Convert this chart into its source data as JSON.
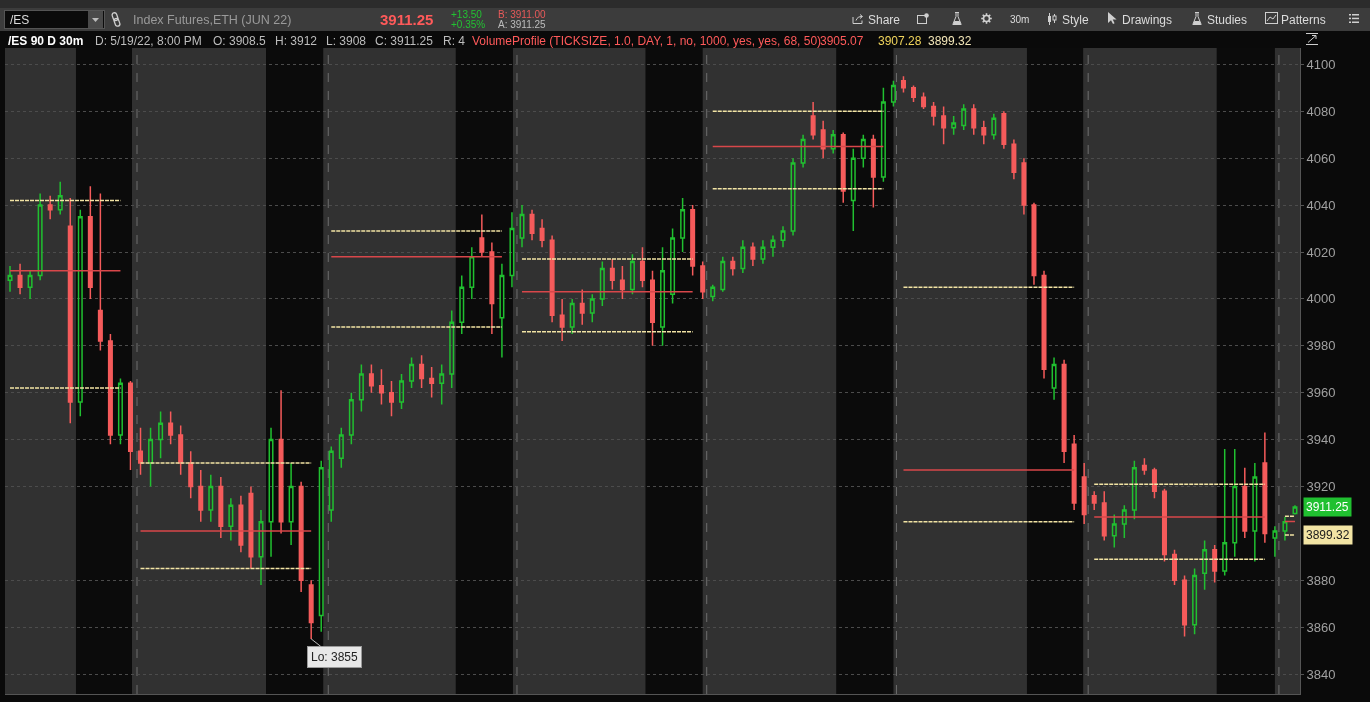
{
  "chart_data": {
    "type": "candlestick",
    "title": "/ES 90 D 30m",
    "subtitle": "Index Futures,ETH (JUN 22)",
    "categories": [
      null,
      null,
      null,
      null,
      null,
      null,
      null,
      null,
      null,
      null,
      null,
      null,
      null,
      null,
      null,
      null,
      null,
      null,
      null,
      null,
      null,
      null,
      null,
      null,
      null,
      null,
      null,
      null,
      null,
      null,
      null,
      null,
      null,
      null,
      null,
      null,
      null,
      null,
      null,
      null,
      null,
      null,
      null,
      null,
      null,
      null,
      null,
      null,
      null,
      null,
      null,
      null,
      null,
      null,
      null,
      null,
      null,
      null,
      null,
      null,
      null,
      null,
      null,
      null,
      null,
      null,
      null,
      null,
      null,
      null,
      null,
      null,
      null,
      null,
      null,
      null,
      null,
      null,
      null,
      null,
      null,
      null,
      null,
      null,
      null,
      null,
      null,
      null,
      null,
      null,
      null,
      null,
      null,
      null,
      null,
      null,
      null,
      null,
      null,
      null,
      null,
      null,
      null,
      null,
      null,
      null,
      null,
      null,
      null,
      null,
      null,
      null,
      null,
      null,
      null,
      null,
      null,
      null,
      null,
      null,
      null,
      null,
      null,
      null,
      null,
      null,
      null,
      null,
      null
    ],
    "ohlc": [
      [
        4008,
        4014,
        4003,
        4010
      ],
      [
        4010,
        4015,
        4002,
        4005
      ],
      [
        4005,
        4012,
        4000,
        4010
      ],
      [
        4010,
        4045,
        4008,
        4040
      ],
      [
        4040,
        4044,
        4034,
        4038
      ],
      [
        4038,
        4050,
        4036,
        4044
      ],
      [
        4031,
        4043,
        3947,
        3956
      ],
      [
        3956,
        4038,
        3950,
        4035
      ],
      [
        4035,
        4048,
        4000,
        4005
      ],
      [
        3995,
        4045,
        3978,
        3982
      ],
      [
        3982,
        3985,
        3938,
        3942
      ],
      [
        3942,
        3966,
        3938,
        3964
      ],
      [
        3964,
        3965,
        3927,
        3935
      ],
      [
        3935,
        3945,
        3925,
        3930
      ],
      [
        3930,
        3945,
        3920,
        3940
      ],
      [
        3940,
        3952,
        3932,
        3947
      ],
      [
        3947,
        3952,
        3938,
        3942
      ],
      [
        3942,
        3946,
        3925,
        3930
      ],
      [
        3930,
        3935,
        3915,
        3920
      ],
      [
        3920,
        3927,
        3905,
        3910
      ],
      [
        3910,
        3925,
        3905,
        3920
      ],
      [
        3920,
        3924,
        3898,
        3903
      ],
      [
        3903,
        3915,
        3897,
        3912
      ],
      [
        3912,
        3916,
        3892,
        3895
      ],
      [
        3917,
        3920,
        3885,
        3890
      ],
      [
        3890,
        3910,
        3878,
        3905
      ],
      [
        3905,
        3945,
        3890,
        3940
      ],
      [
        3940,
        3961,
        3900,
        3905
      ],
      [
        3905,
        3930,
        3895,
        3920
      ],
      [
        3920,
        3922,
        3875,
        3880
      ],
      [
        3878,
        3880,
        3855,
        3862
      ],
      [
        3865,
        3931,
        3858,
        3928
      ],
      [
        3910,
        3937,
        3905,
        3935
      ],
      [
        3932,
        3945,
        3928,
        3942
      ],
      [
        3942,
        3960,
        3938,
        3957
      ],
      [
        3957,
        3972,
        3952,
        3968
      ],
      [
        3968,
        3972,
        3960,
        3963
      ],
      [
        3963,
        3970,
        3955,
        3960
      ],
      [
        3960,
        3965,
        3950,
        3956
      ],
      [
        3956,
        3968,
        3953,
        3965
      ],
      [
        3965,
        3975,
        3962,
        3972
      ],
      [
        3972,
        3976,
        3962,
        3966
      ],
      [
        3966,
        3971,
        3958,
        3964
      ],
      [
        3964,
        3972,
        3955,
        3968
      ],
      [
        3968,
        3995,
        3962,
        3990
      ],
      [
        3990,
        4010,
        3985,
        4005
      ],
      [
        4005,
        4022,
        4000,
        4018
      ],
      [
        4026,
        4036,
        4018,
        4020
      ],
      [
        4020,
        4024,
        3985,
        3998
      ],
      [
        3992,
        4015,
        3975,
        4010
      ],
      [
        4010,
        4037,
        4005,
        4030
      ],
      [
        4026,
        4040,
        4022,
        4036
      ],
      [
        4036,
        4038,
        4025,
        4028
      ],
      [
        4030,
        4034,
        4022,
        4025
      ],
      [
        4025,
        4027,
        3990,
        3993
      ],
      [
        3993,
        4000,
        3982,
        3988
      ],
      [
        3988,
        4000,
        3985,
        3998
      ],
      [
        3998,
        4004,
        3989,
        3994
      ],
      [
        3994,
        4002,
        3990,
        4000
      ],
      [
        4000,
        4016,
        3997,
        4013
      ],
      [
        4013,
        4017,
        4004,
        4008
      ],
      [
        4008,
        4014,
        4000,
        4004
      ],
      [
        4004,
        4019,
        4002,
        4016
      ],
      [
        4016,
        4022,
        4005,
        4008
      ],
      [
        4008,
        4012,
        3980,
        3990
      ],
      [
        3988,
        4022,
        3980,
        4012
      ],
      [
        4002,
        4030,
        3998,
        4026
      ],
      [
        4026,
        4043,
        4020,
        4038
      ],
      [
        4038,
        4040,
        4010,
        4014
      ],
      [
        4014,
        4016,
        4000,
        4003
      ],
      [
        4001,
        4006,
        3999,
        4005
      ],
      [
        4004,
        4018,
        4003,
        4016
      ],
      [
        4016,
        4018,
        4010,
        4013
      ],
      [
        4013,
        4025,
        4011,
        4022
      ],
      [
        4022,
        4024,
        4014,
        4017
      ],
      [
        4017,
        4025,
        4015,
        4022
      ],
      [
        4022,
        4027,
        4018,
        4025
      ],
      [
        4025,
        4031,
        4022,
        4029
      ],
      [
        4029,
        4060,
        4027,
        4058
      ],
      [
        4058,
        4070,
        4056,
        4068
      ],
      [
        4078,
        4084,
        4068,
        4070
      ],
      [
        4072,
        4076,
        4060,
        4064
      ],
      [
        4064,
        4072,
        4062,
        4070
      ],
      [
        4070,
        4071,
        4041,
        4046
      ],
      [
        4042,
        4064,
        4029,
        4060
      ],
      [
        4060,
        4070,
        4056,
        4068
      ],
      [
        4068,
        4070,
        4039,
        4052
      ],
      [
        4052,
        4090,
        4050,
        4084
      ],
      [
        4084,
        4093,
        4082,
        4091
      ],
      [
        4093,
        4095,
        4088,
        4090
      ],
      [
        4090,
        4091,
        4084,
        4086
      ],
      [
        4086,
        4088,
        4081,
        4082
      ],
      [
        4082,
        4084,
        4074,
        4078
      ],
      [
        4078,
        4082,
        4066,
        4073
      ],
      [
        4073,
        4078,
        4070,
        4075
      ],
      [
        4074,
        4083,
        4072,
        4081
      ],
      [
        4081,
        4083,
        4070,
        4073
      ],
      [
        4073,
        4076,
        4066,
        4070
      ],
      [
        4070,
        4079,
        4068,
        4077
      ],
      [
        4079,
        4080,
        4064,
        4066
      ],
      [
        4066,
        4068,
        4051,
        4054
      ],
      [
        4058,
        4060,
        4036,
        4040
      ],
      [
        4040,
        4041,
        4006,
        4010
      ],
      [
        4010,
        4012,
        3966,
        3970
      ],
      [
        3962,
        3975,
        3957,
        3972
      ],
      [
        3972,
        3974,
        3930,
        3935
      ],
      [
        3938,
        3942,
        3910,
        3913
      ],
      [
        3924,
        3930,
        3904,
        3908
      ],
      [
        3916,
        3918,
        3910,
        3913
      ],
      [
        3913,
        3918,
        3897,
        3899
      ],
      [
        3899,
        3908,
        3894,
        3904
      ],
      [
        3904,
        3912,
        3898,
        3910
      ],
      [
        3910,
        3931,
        3906,
        3928
      ],
      [
        3929,
        3932,
        3925,
        3927
      ],
      [
        3927,
        3928,
        3915,
        3918
      ],
      [
        3918,
        3919,
        3888,
        3891
      ],
      [
        3891,
        3893,
        3878,
        3880
      ],
      [
        3880,
        3882,
        3856,
        3861
      ],
      [
        3861,
        3885,
        3857,
        3882
      ],
      [
        3883,
        3897,
        3876,
        3893
      ],
      [
        3893,
        3895,
        3879,
        3884
      ],
      [
        3884,
        3936,
        3882,
        3896
      ],
      [
        3896,
        3936,
        3890,
        3920
      ],
      [
        3920,
        3928,
        3898,
        3901
      ],
      [
        3901,
        3930,
        3888,
        3924
      ],
      [
        3930,
        3943,
        3896,
        3900
      ],
      [
        3898,
        3903,
        3890,
        3901
      ],
      [
        3901,
        3907,
        3897,
        3905
      ],
      [
        3908.5,
        3912,
        3908,
        3911.25
      ]
    ],
    "colors": [
      "#20c030",
      "#f55b5b",
      "#20c030",
      "#20c030",
      "#f55b5b",
      "#20c030",
      "#f55b5b",
      "#20c030",
      "#f55b5b",
      "#f55b5b",
      "#f55b5b",
      "#20c030",
      "#f55b5b",
      "#f55b5b",
      "#20c030",
      "#20c030",
      "#f55b5b",
      "#f55b5b",
      "#f55b5b",
      "#f55b5b",
      "#20c030",
      "#f55b5b",
      "#20c030",
      "#f55b5b",
      "#f55b5b",
      "#20c030",
      "#20c030",
      "#f55b5b",
      "#20c030",
      "#f55b5b",
      "#f55b5b",
      "#20c030",
      "#20c030",
      "#20c030",
      "#20c030",
      "#20c030",
      "#f55b5b",
      "#f55b5b",
      "#f55b5b",
      "#20c030",
      "#20c030",
      "#f55b5b",
      "#f55b5b",
      "#20c030",
      "#20c030",
      "#20c030",
      "#20c030",
      "#f55b5b",
      "#f55b5b",
      "#20c030",
      "#20c030",
      "#20c030",
      "#f55b5b",
      "#f55b5b",
      "#f55b5b",
      "#f55b5b",
      "#20c030",
      "#f55b5b",
      "#20c030",
      "#20c030",
      "#f55b5b",
      "#f55b5b",
      "#20c030",
      "#f55b5b",
      "#f55b5b",
      "#20c030",
      "#20c030",
      "#20c030",
      "#f55b5b",
      "#f55b5b",
      "#20c030",
      "#20c030",
      "#f55b5b",
      "#20c030",
      "#f55b5b",
      "#20c030",
      "#20c030",
      "#20c030",
      "#20c030",
      "#20c030",
      "#f55b5b",
      "#f55b5b",
      "#20c030",
      "#f55b5b",
      "#20c030",
      "#20c030",
      "#f55b5b",
      "#20c030",
      "#20c030",
      "#f55b5b",
      "#f55b5b",
      "#f55b5b",
      "#f55b5b",
      "#f55b5b",
      "#20c030",
      "#20c030",
      "#f55b5b",
      "#f55b5b",
      "#20c030",
      "#f55b5b",
      "#f55b5b",
      "#f55b5b",
      "#f55b5b",
      "#f55b5b",
      "#20c030",
      "#f55b5b",
      "#f55b5b",
      "#f55b5b",
      "#f55b5b",
      "#f55b5b",
      "#20c030",
      "#20c030",
      "#20c030",
      "#f55b5b",
      "#f55b5b",
      "#f55b5b",
      "#f55b5b",
      "#f55b5b",
      "#20c030",
      "#20c030",
      "#f55b5b",
      "#20c030",
      "#20c030",
      "#f55b5b",
      "#20c030",
      "#f55b5b",
      "#20c030",
      "#20c030",
      "#20c030"
    ],
    "series": [
      {
        "type": "line",
        "color": "#f2e4a4",
        "line_style": "dotted",
        "values": [
          4042,
          4042,
          4042,
          4042,
          4042,
          4042,
          4042,
          4042,
          4042,
          4042,
          4042,
          4042,
          null,
          3930,
          3930,
          3930,
          3930,
          3930,
          3930,
          3930,
          3930,
          3930,
          3930,
          3930,
          3930,
          3930,
          3930,
          3930,
          3930,
          3930,
          3930,
          null,
          4029,
          4029,
          4029,
          4029,
          4029,
          4029,
          4029,
          4029,
          4029,
          4029,
          4029,
          4029,
          4029,
          4029,
          4029,
          4029,
          4029,
          4029,
          null,
          4017,
          4017,
          4017,
          4017,
          4017,
          4017,
          4017,
          4017,
          4017,
          4017,
          4017,
          4017,
          4017,
          4017,
          4017,
          4017,
          4017,
          4017,
          null,
          4080,
          4080,
          4080,
          4080,
          4080,
          4080,
          4080,
          4080,
          4080,
          4080,
          4080,
          4080,
          4080,
          4080,
          4080,
          4080,
          4080,
          4080,
          null,
          4005,
          4005,
          4005,
          4005,
          4005,
          4005,
          4005,
          4005,
          4005,
          4005,
          4005,
          4005,
          4005,
          4005,
          4005,
          4005,
          4005,
          4005,
          null,
          3921,
          3921,
          3921,
          3921,
          3921,
          3921,
          3921,
          3921,
          3921,
          3921,
          3921,
          3921,
          3921,
          3921,
          3921,
          3921,
          3921,
          3921,
          null,
          3907.28,
          3907.28
        ]
      },
      {
        "type": "line",
        "color": "#d8474a",
        "line_style": "solid",
        "values": [
          4012,
          4012,
          4012,
          4012,
          4012,
          4012,
          4012,
          4012,
          4012,
          4012,
          4012,
          4012,
          null,
          3901,
          3901,
          3901,
          3901,
          3901,
          3901,
          3901,
          3901,
          3901,
          3901,
          3901,
          3901,
          3901,
          3901,
          3901,
          3901,
          3901,
          3901,
          null,
          4018,
          4018,
          4018,
          4018,
          4018,
          4018,
          4018,
          4018,
          4018,
          4018,
          4018,
          4018,
          4018,
          4018,
          4018,
          4018,
          4018,
          4018,
          null,
          4003,
          4003,
          4003,
          4003,
          4003,
          4003,
          4003,
          4003,
          4003,
          4003,
          4003,
          4003,
          4003,
          4003,
          4003,
          4003,
          4003,
          4003,
          null,
          4065,
          4065,
          4065,
          4065,
          4065,
          4065,
          4065,
          4065,
          4065,
          4065,
          4065,
          4065,
          4065,
          4065,
          4065,
          4065,
          4065,
          4065,
          null,
          3927,
          3927,
          3927,
          3927,
          3927,
          3927,
          3927,
          3927,
          3927,
          3927,
          3927,
          3927,
          3927,
          3927,
          3927,
          3927,
          3927,
          3927,
          null,
          3907,
          3907,
          3907,
          3907,
          3907,
          3907,
          3907,
          3907,
          3907,
          3907,
          3907,
          3907,
          3907,
          3907,
          3907,
          3907,
          3907,
          3907,
          null,
          3905.07,
          3905.07
        ]
      },
      {
        "type": "line",
        "color": "#f2e4a4",
        "line_style": "dotted",
        "values": [
          3962,
          3962,
          3962,
          3962,
          3962,
          3962,
          3962,
          3962,
          3962,
          3962,
          3962,
          3962,
          null,
          3885,
          3885,
          3885,
          3885,
          3885,
          3885,
          3885,
          3885,
          3885,
          3885,
          3885,
          3885,
          3885,
          3885,
          3885,
          3885,
          3885,
          3885,
          null,
          3988,
          3988,
          3988,
          3988,
          3988,
          3988,
          3988,
          3988,
          3988,
          3988,
          3988,
          3988,
          3988,
          3988,
          3988,
          3988,
          3988,
          3988,
          null,
          3986,
          3986,
          3986,
          3986,
          3986,
          3986,
          3986,
          3986,
          3986,
          3986,
          3986,
          3986,
          3986,
          3986,
          3986,
          3986,
          3986,
          3986,
          null,
          4047,
          4047,
          4047,
          4047,
          4047,
          4047,
          4047,
          4047,
          4047,
          4047,
          4047,
          4047,
          4047,
          4047,
          4047,
          4047,
          4047,
          4047,
          null,
          3905,
          3905,
          3905,
          3905,
          3905,
          3905,
          3905,
          3905,
          3905,
          3905,
          3905,
          3905,
          3905,
          3905,
          3905,
          3905,
          3905,
          3905,
          null,
          3889,
          3889,
          3889,
          3889,
          3889,
          3889,
          3889,
          3889,
          3889,
          3889,
          3889,
          3889,
          3889,
          3889,
          3889,
          3889,
          3889,
          3889,
          null,
          3899.32,
          3899.32
        ]
      }
    ],
    "ylim": [
      3831.5,
      4107
    ],
    "yticks": [
      3840,
      3860,
      3880,
      3920,
      3940,
      3960,
      3980,
      4000,
      4020,
      4040,
      4060,
      4080,
      4100
    ],
    "grid": "y",
    "tick_labels": "y",
    "annotations": [
      "/ES",
      "3911.25",
      "+13.50",
      "+0.35%",
      "B: 3911.00",
      "A: 3911.25",
      "Share",
      "30m",
      "Style",
      "Drawings",
      "Studies",
      "Patterns",
      "D: 5/19/22, 8:00 PM",
      "O: 3908.5",
      "H: 3912",
      "L: 3908",
      "C: 3911.25",
      "R: 4",
      "VolumeProfile (TICKSIZE, 1.0, DAY, 1, no, 1000, yes, yes, 68, 50)",
      "3905.07",
      "3907.28",
      "3899.32",
      "Lo: 3855",
      "3911.25",
      "3899.32"
    ]
  }
}
